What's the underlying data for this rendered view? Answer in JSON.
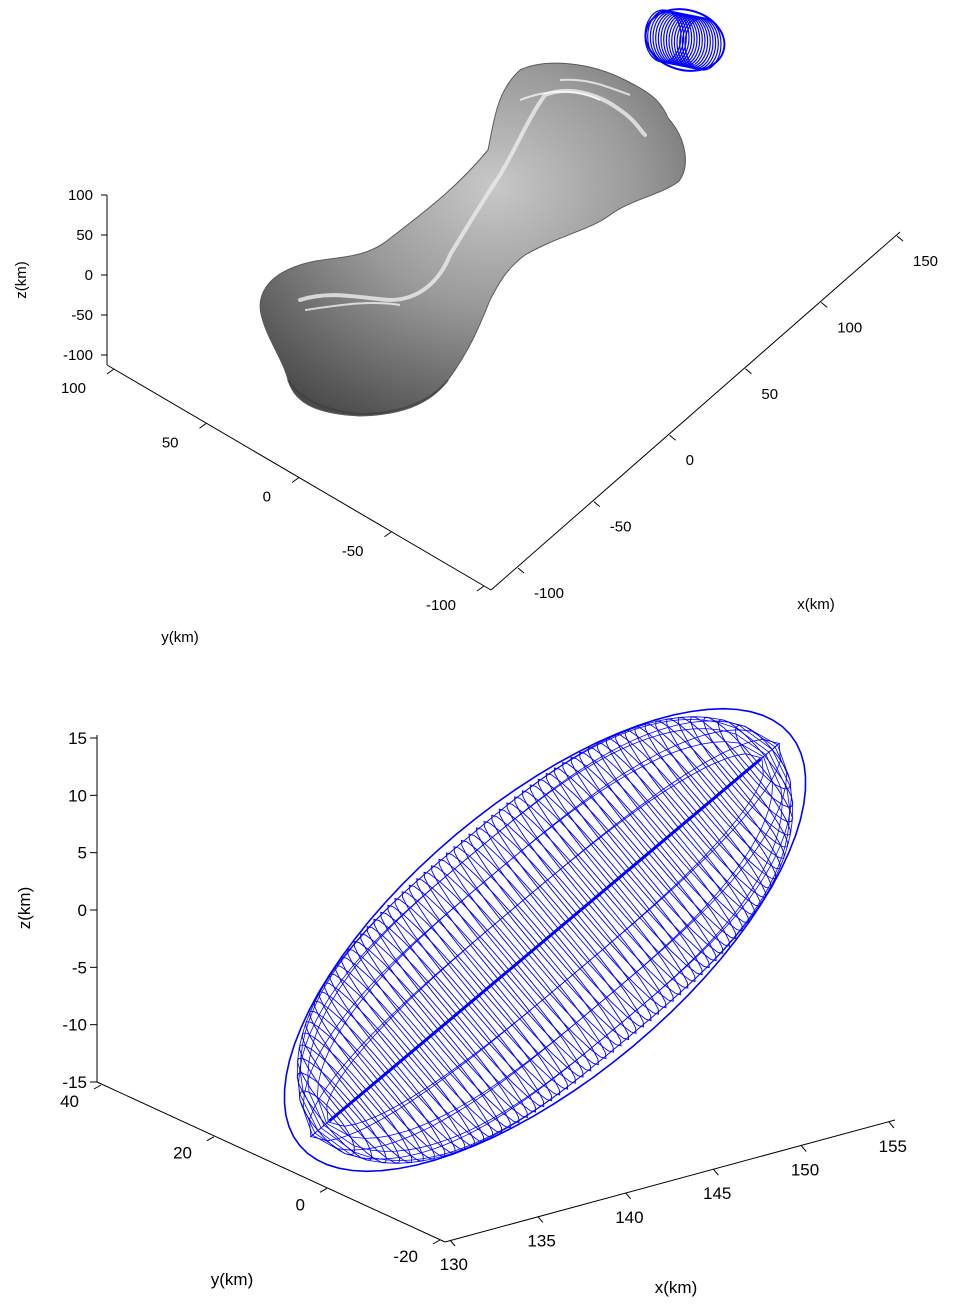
{
  "chart_data": [
    {
      "type": "surface3d",
      "title": "",
      "xlabel": "x(km)",
      "ylabel": "y(km)",
      "zlabel": "z(km)",
      "x_ticks": [
        -100,
        -50,
        0,
        50,
        100,
        150
      ],
      "y_ticks": [
        -100,
        -50,
        0,
        50,
        100
      ],
      "z_ticks": [
        -100,
        -50,
        0,
        50,
        100
      ],
      "xlim": [
        -110,
        160
      ],
      "ylim": [
        -110,
        110
      ],
      "zlim": [
        -110,
        110
      ],
      "grid": false,
      "surface_color": "#808080",
      "orbit_color": "#0000ff",
      "series": [
        {
          "kind": "asteroid-surface",
          "shape": "elongated dumbbell body, long axis ~ -100 to 130 km in x"
        },
        {
          "kind": "orbit-wireframe",
          "center": [
            142,
            10,
            0
          ]
        }
      ]
    },
    {
      "type": "wireframe3d",
      "title": "",
      "xlabel": "x(km)",
      "ylabel": "y(km)",
      "zlabel": "z(km)",
      "x_ticks": [
        130,
        135,
        140,
        145,
        150,
        155
      ],
      "y_ticks": [
        -20,
        0,
        20,
        40
      ],
      "z_ticks": [
        -15,
        -10,
        -5,
        0,
        5,
        10,
        15
      ],
      "xlim": [
        130,
        155
      ],
      "ylim": [
        -20,
        40
      ],
      "zlim": [
        -15,
        15
      ],
      "grid": false,
      "wire_color": "#0000ff",
      "series": [
        {
          "kind": "orbit-torus-wireframe",
          "center_x": 142.5,
          "center_y": 10,
          "center_z": 0
        }
      ]
    }
  ]
}
